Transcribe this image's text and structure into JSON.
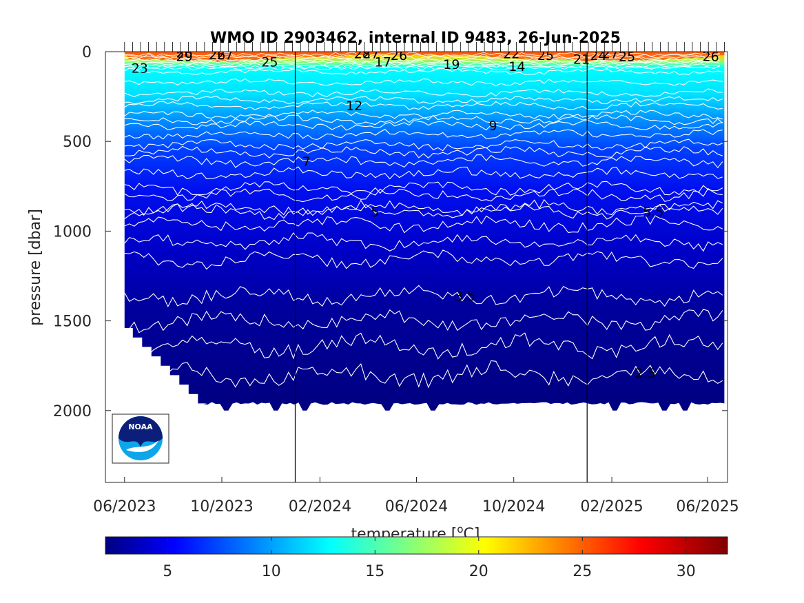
{
  "chart_data": {
    "type": "heatmap",
    "title": "WMO ID 2903462, internal ID 9483, 26-Jun-2025",
    "ylabel": "pressure [dbar]",
    "colorbar_label": "temperature [°C]",
    "colorbar_label_parts": {
      "main": "temperature [",
      "superscript": "o",
      "unit": "C]"
    },
    "x_tick_labels": [
      "06/2023",
      "10/2023",
      "02/2024",
      "06/2024",
      "10/2024",
      "02/2025",
      "06/2025"
    ],
    "x_ticks": [
      "2023-06-01",
      "2023-10-01",
      "2024-02-01",
      "2024-06-01",
      "2024-10-01",
      "2025-02-01",
      "2025-06-01"
    ],
    "x_range": [
      "2023-05-08",
      "2025-06-26"
    ],
    "year_boundaries": [
      "2024-01-01",
      "2025-01-01"
    ],
    "y_ticks": [
      0,
      500,
      1000,
      1500,
      2000
    ],
    "ylim": [
      0,
      2400
    ],
    "y_reversed": true,
    "colorbar_ticks": [
      5,
      10,
      15,
      20,
      25,
      30
    ],
    "colorbar_range": [
      2,
      32
    ],
    "colormap": "jet",
    "data_extent": {
      "max_depth_initial": 1540,
      "max_depth_typical": 1960,
      "deep_profiles_depth": 2000
    },
    "isotherm_depths": [
      {
        "temperature": 12,
        "depth": 300
      },
      {
        "temperature": 9,
        "depth": 410
      },
      {
        "temperature": 7,
        "depth": 610
      },
      {
        "temperature": 5.5,
        "depth": 870
      },
      {
        "temperature": 5,
        "depth": 890
      },
      {
        "temperature": 3.5,
        "depth": 1360
      },
      {
        "temperature": 2.5,
        "depth": 1800
      }
    ],
    "contour_labels": [
      {
        "text": "23",
        "date": "2023-06-20",
        "depth": 90
      },
      {
        "text": "26",
        "date": "2023-08-15",
        "depth": 5
      },
      {
        "text": "29",
        "date": "2023-08-15",
        "depth": 25
      },
      {
        "text": "26",
        "date": "2023-09-25",
        "depth": 15
      },
      {
        "text": "27",
        "date": "2023-10-05",
        "depth": 15
      },
      {
        "text": "25",
        "date": "2023-11-30",
        "depth": 55
      },
      {
        "text": "28",
        "date": "2024-03-25",
        "depth": 10
      },
      {
        "text": "27",
        "date": "2024-04-05",
        "depth": 10
      },
      {
        "text": "17",
        "date": "2024-04-20",
        "depth": 55
      },
      {
        "text": "26",
        "date": "2024-05-10",
        "depth": 20
      },
      {
        "text": "19",
        "date": "2024-07-15",
        "depth": 70
      },
      {
        "text": "22",
        "date": "2024-09-28",
        "depth": 10
      },
      {
        "text": "14",
        "date": "2024-10-05",
        "depth": 80
      },
      {
        "text": "25",
        "date": "2024-11-10",
        "depth": 20
      },
      {
        "text": "21",
        "date": "2024-12-25",
        "depth": 40
      },
      {
        "text": "24",
        "date": "2025-01-15",
        "depth": 20
      },
      {
        "text": "27",
        "date": "2025-01-30",
        "depth": 10
      },
      {
        "text": "25",
        "date": "2025-02-20",
        "depth": 25
      },
      {
        "text": "26",
        "date": "2025-06-05",
        "depth": 25
      },
      {
        "text": "12",
        "date": "2024-03-15",
        "depth": 300
      },
      {
        "text": "9",
        "date": "2024-09-05",
        "depth": 410
      },
      {
        "text": "7",
        "date": "2024-01-15",
        "depth": 610
      },
      {
        "text": "5",
        "date": "2024-04-10",
        "depth": 890
      },
      {
        "text": "5.5",
        "date": "2025-03-25",
        "depth": 890
      },
      {
        "text": "3.5",
        "date": "2024-08-01",
        "depth": 1360
      },
      {
        "text": "2.5",
        "date": "2025-03-15",
        "depth": 1790
      }
    ]
  },
  "logo": {
    "text": "NOAA",
    "colors": {
      "dark": "#0b1f7a",
      "light": "#0ea5e9"
    }
  }
}
